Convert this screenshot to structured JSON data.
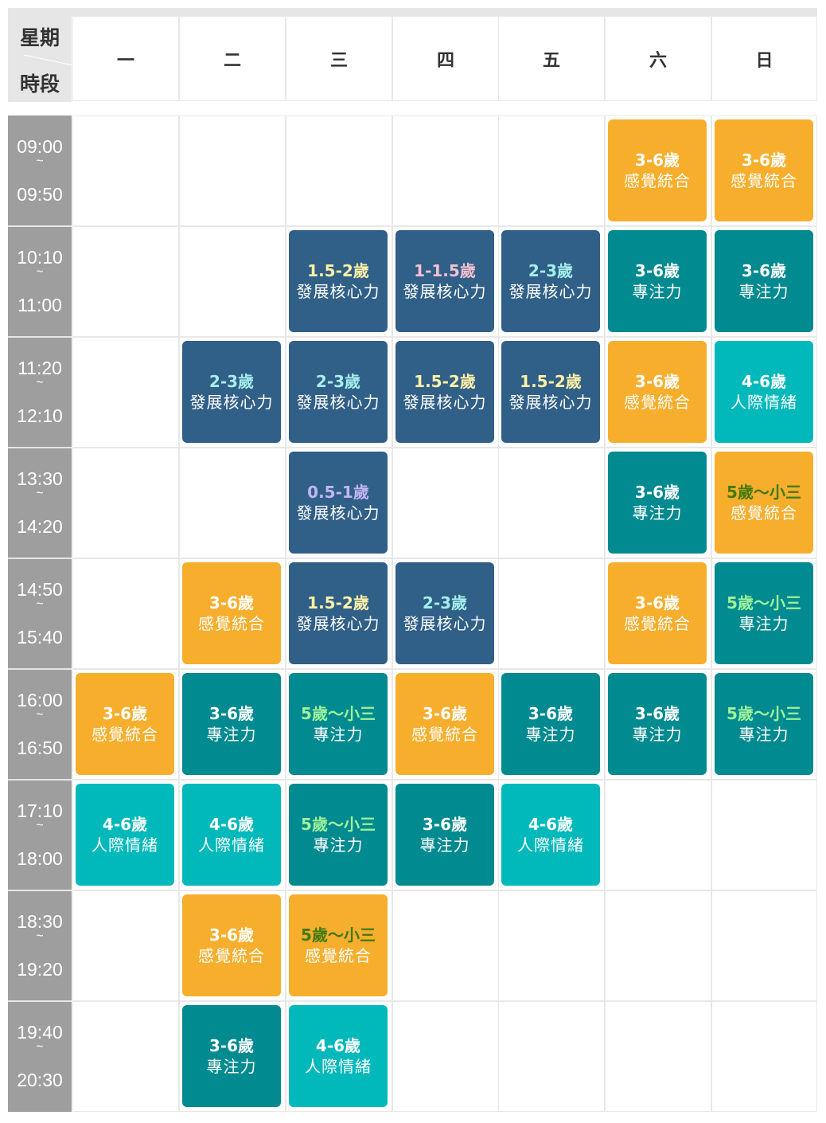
{
  "header": {
    "corner_week": "星期",
    "corner_time": "時段",
    "days": [
      "一",
      "二",
      "三",
      "四",
      "五",
      "六",
      "日"
    ]
  },
  "time_slots": [
    {
      "start": "09:00",
      "sep": "~",
      "end": "09:50"
    },
    {
      "start": "10:10",
      "sep": "~",
      "end": "11:00"
    },
    {
      "start": "11:20",
      "sep": "~",
      "end": "12:10"
    },
    {
      "start": "13:30",
      "sep": "~",
      "end": "14:20"
    },
    {
      "start": "14:50",
      "sep": "~",
      "end": "15:40"
    },
    {
      "start": "16:00",
      "sep": "~",
      "end": "16:50"
    },
    {
      "start": "17:10",
      "sep": "~",
      "end": "18:00"
    },
    {
      "start": "18:30",
      "sep": "~",
      "end": "19:20"
    },
    {
      "start": "19:40",
      "sep": "~",
      "end": "20:30"
    }
  ],
  "colors": {
    "sensory": "#f7ae2c",
    "development": "#305f87",
    "focus": "#018a8f",
    "social": "#01b8bb",
    "age_yellow": "#fff1a6",
    "age_pink": "#f5c1d2",
    "age_cyan": "#a6eeec",
    "age_purple": "#c3b5f2",
    "age_green_light": "#9ef39a",
    "age_green_dark": "#3f7a10",
    "age_white": "#ffffff"
  },
  "sessions": [
    {
      "slot": 0,
      "day": 5,
      "type": "sensory",
      "age": "3-6歲",
      "age_color": "age_white",
      "topic": "感覺統合"
    },
    {
      "slot": 0,
      "day": 6,
      "type": "sensory",
      "age": "3-6歲",
      "age_color": "age_white",
      "topic": "感覺統合"
    },
    {
      "slot": 1,
      "day": 2,
      "type": "development",
      "age": "1.5-2歲",
      "age_color": "age_yellow",
      "topic": "發展核心力"
    },
    {
      "slot": 1,
      "day": 3,
      "type": "development",
      "age": "1-1.5歲",
      "age_color": "age_pink",
      "topic": "發展核心力"
    },
    {
      "slot": 1,
      "day": 4,
      "type": "development",
      "age": "2-3歲",
      "age_color": "age_cyan",
      "topic": "發展核心力"
    },
    {
      "slot": 1,
      "day": 5,
      "type": "focus",
      "age": "3-6歲",
      "age_color": "age_white",
      "topic": "專注力"
    },
    {
      "slot": 1,
      "day": 6,
      "type": "focus",
      "age": "3-6歲",
      "age_color": "age_white",
      "topic": "專注力"
    },
    {
      "slot": 2,
      "day": 1,
      "type": "development",
      "age": "2-3歲",
      "age_color": "age_cyan",
      "topic": "發展核心力"
    },
    {
      "slot": 2,
      "day": 2,
      "type": "development",
      "age": "2-3歲",
      "age_color": "age_cyan",
      "topic": "發展核心力"
    },
    {
      "slot": 2,
      "day": 3,
      "type": "development",
      "age": "1.5-2歲",
      "age_color": "age_yellow",
      "topic": "發展核心力"
    },
    {
      "slot": 2,
      "day": 4,
      "type": "development",
      "age": "1.5-2歲",
      "age_color": "age_yellow",
      "topic": "發展核心力"
    },
    {
      "slot": 2,
      "day": 5,
      "type": "sensory",
      "age": "3-6歲",
      "age_color": "age_white",
      "topic": "感覺統合"
    },
    {
      "slot": 2,
      "day": 6,
      "type": "social",
      "age": "4-6歲",
      "age_color": "age_white",
      "topic": "人際情緒"
    },
    {
      "slot": 3,
      "day": 2,
      "type": "development",
      "age": "0.5-1歲",
      "age_color": "age_purple",
      "topic": "發展核心力"
    },
    {
      "slot": 3,
      "day": 5,
      "type": "focus",
      "age": "3-6歲",
      "age_color": "age_white",
      "topic": "專注力"
    },
    {
      "slot": 3,
      "day": 6,
      "type": "sensory",
      "age": "5歲～小三",
      "age_color": "age_green_dark",
      "topic": "感覺統合"
    },
    {
      "slot": 4,
      "day": 1,
      "type": "sensory",
      "age": "3-6歲",
      "age_color": "age_white",
      "topic": "感覺統合"
    },
    {
      "slot": 4,
      "day": 2,
      "type": "development",
      "age": "1.5-2歲",
      "age_color": "age_yellow",
      "topic": "發展核心力"
    },
    {
      "slot": 4,
      "day": 3,
      "type": "development",
      "age": "2-3歲",
      "age_color": "age_cyan",
      "topic": "發展核心力"
    },
    {
      "slot": 4,
      "day": 5,
      "type": "sensory",
      "age": "3-6歲",
      "age_color": "age_white",
      "topic": "感覺統合"
    },
    {
      "slot": 4,
      "day": 6,
      "type": "focus",
      "age": "5歲～小三",
      "age_color": "age_green_light",
      "topic": "專注力"
    },
    {
      "slot": 5,
      "day": 0,
      "type": "sensory",
      "age": "3-6歲",
      "age_color": "age_white",
      "topic": "感覺統合"
    },
    {
      "slot": 5,
      "day": 1,
      "type": "focus",
      "age": "3-6歲",
      "age_color": "age_white",
      "topic": "專注力"
    },
    {
      "slot": 5,
      "day": 2,
      "type": "focus",
      "age": "5歲～小三",
      "age_color": "age_green_light",
      "topic": "專注力"
    },
    {
      "slot": 5,
      "day": 3,
      "type": "sensory",
      "age": "3-6歲",
      "age_color": "age_white",
      "topic": "感覺統合"
    },
    {
      "slot": 5,
      "day": 4,
      "type": "focus",
      "age": "3-6歲",
      "age_color": "age_white",
      "topic": "專注力"
    },
    {
      "slot": 5,
      "day": 5,
      "type": "focus",
      "age": "3-6歲",
      "age_color": "age_white",
      "topic": "專注力"
    },
    {
      "slot": 5,
      "day": 6,
      "type": "focus",
      "age": "5歲～小三",
      "age_color": "age_green_light",
      "topic": "專注力"
    },
    {
      "slot": 6,
      "day": 0,
      "type": "social",
      "age": "4-6歲",
      "age_color": "age_white",
      "topic": "人際情緒"
    },
    {
      "slot": 6,
      "day": 1,
      "type": "social",
      "age": "4-6歲",
      "age_color": "age_white",
      "topic": "人際情緒"
    },
    {
      "slot": 6,
      "day": 2,
      "type": "focus",
      "age": "5歲～小三",
      "age_color": "age_green_light",
      "topic": "專注力"
    },
    {
      "slot": 6,
      "day": 3,
      "type": "focus",
      "age": "3-6歲",
      "age_color": "age_white",
      "topic": "專注力"
    },
    {
      "slot": 6,
      "day": 4,
      "type": "social",
      "age": "4-6歲",
      "age_color": "age_white",
      "topic": "人際情緒"
    },
    {
      "slot": 7,
      "day": 1,
      "type": "sensory",
      "age": "3-6歲",
      "age_color": "age_white",
      "topic": "感覺統合"
    },
    {
      "slot": 7,
      "day": 2,
      "type": "sensory",
      "age": "5歲～小三",
      "age_color": "age_green_dark",
      "topic": "感覺統合"
    },
    {
      "slot": 8,
      "day": 1,
      "type": "focus",
      "age": "3-6歲",
      "age_color": "age_white",
      "topic": "專注力"
    },
    {
      "slot": 8,
      "day": 2,
      "type": "social",
      "age": "4-6歲",
      "age_color": "age_white",
      "topic": "人際情緒"
    }
  ]
}
